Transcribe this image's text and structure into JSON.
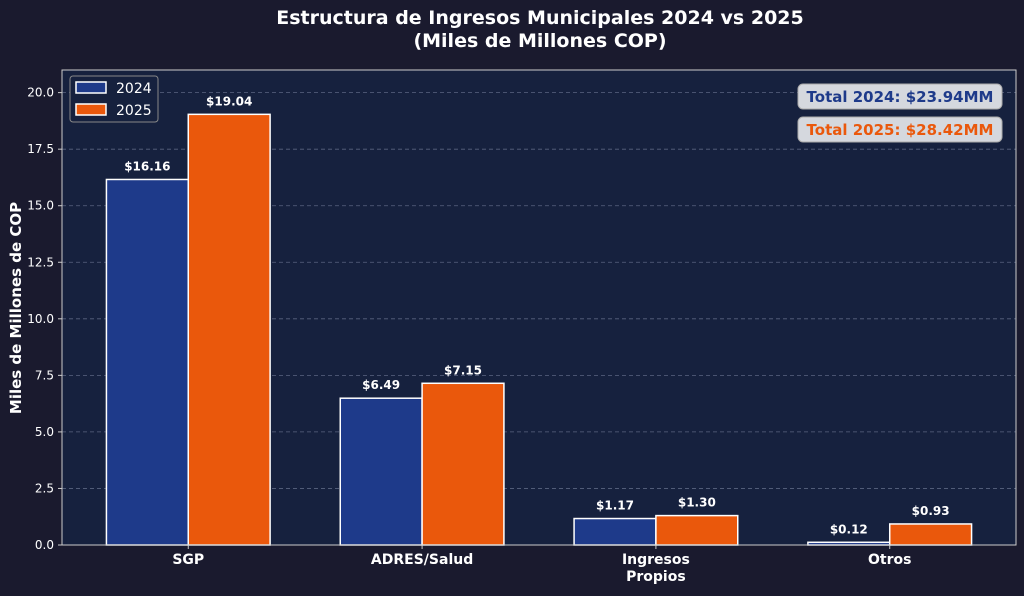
{
  "chart_data": {
    "type": "bar",
    "title": "Estructura de Ingresos Municipales 2024 vs 2025",
    "subtitle": "(Miles de Millones COP)",
    "xlabel": "",
    "ylabel": "Miles de Millones de COP",
    "categories": [
      "SGP",
      "ADRES/Salud",
      "Ingresos\nPropios",
      "Otros"
    ],
    "series": [
      {
        "name": "2024",
        "color": "#1e3a8a",
        "values": [
          16.16,
          6.49,
          1.17,
          0.12
        ],
        "labels": [
          "$16.16",
          "$6.49",
          "$1.17",
          "$0.12"
        ]
      },
      {
        "name": "2025",
        "color": "#ea580c",
        "values": [
          19.04,
          7.15,
          1.3,
          0.93
        ],
        "labels": [
          "$19.04",
          "$7.15",
          "$1.30",
          "$0.93"
        ]
      }
    ],
    "ylim": [
      0,
      21
    ],
    "yticks": [
      0,
      2.5,
      5,
      7.5,
      10,
      12.5,
      15,
      17.5,
      20
    ],
    "ytick_labels": [
      "0.0",
      "2.5",
      "5.0",
      "7.5",
      "10.0",
      "12.5",
      "15.0",
      "17.5",
      "20.0"
    ],
    "grid": true,
    "legend_position": "top-left",
    "annotations": [
      {
        "text": "Total 2024: $23.94MM",
        "color": "#1e3a8a"
      },
      {
        "text": "Total 2025: $28.42MM",
        "color": "#ea580c"
      }
    ]
  }
}
